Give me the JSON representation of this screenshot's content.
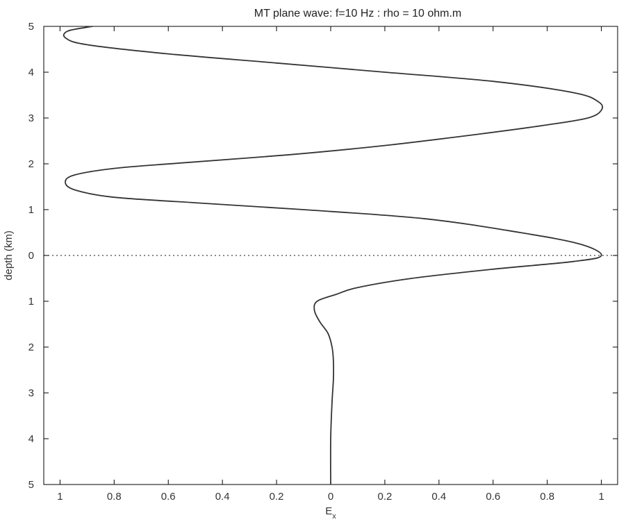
{
  "chart_data": {
    "type": "line",
    "title": "MT plane wave: f=10 Hz : rho = 10 ohm.m",
    "xlabel": "E",
    "xlabel_subscript": "x",
    "ylabel": "depth (km)",
    "xlim": [
      -1.06,
      1.06
    ],
    "ylim": [
      -5,
      5
    ],
    "x_ticks": [
      -1,
      -0.8,
      -0.6,
      -0.4,
      -0.2,
      0,
      0.2,
      0.4,
      0.6,
      0.8,
      1
    ],
    "x_tick_labels": [
      "1",
      "0.8",
      "0.6",
      "0.4",
      "0.2",
      "0",
      "0.2",
      "0.4",
      "0.6",
      "0.8",
      "1"
    ],
    "y_ticks": [
      5,
      4,
      3,
      2,
      1,
      0,
      -1,
      -2,
      -3,
      -4,
      -5
    ],
    "y_tick_labels": [
      "5",
      "4",
      "3",
      "2",
      "1",
      "0",
      "1",
      "2",
      "3",
      "4",
      "5"
    ],
    "reference_line": {
      "y": 0,
      "style": "dotted"
    },
    "series": [
      {
        "x": [
          -0.88,
          -0.97,
          -0.98,
          -0.9,
          -0.6,
          -0.2,
          0.2,
          0.6,
          0.9,
          0.99,
          1.0,
          0.95,
          0.8,
          0.55,
          0.2,
          -0.15,
          -0.55,
          -0.8,
          -0.95,
          -0.98,
          -0.94,
          -0.8,
          -0.5,
          -0.1,
          0.35,
          0.7,
          0.92,
          1.0,
          0.9,
          0.6,
          0.3,
          0.1,
          0.02,
          -0.05,
          -0.06,
          -0.04,
          -0.01,
          0.005,
          0.01,
          0.01,
          0.005,
          0.0,
          0.0
        ],
        "y": [
          5,
          4.9,
          4.75,
          4.6,
          4.4,
          4.2,
          4.0,
          3.8,
          3.55,
          3.35,
          3.17,
          3.0,
          2.85,
          2.65,
          2.4,
          2.2,
          2.02,
          1.9,
          1.75,
          1.58,
          1.42,
          1.27,
          1.15,
          1.0,
          0.8,
          0.5,
          0.25,
          0.0,
          -0.13,
          -0.3,
          -0.5,
          -0.7,
          -0.85,
          -1.0,
          -1.2,
          -1.45,
          -1.7,
          -2.0,
          -2.3,
          -2.7,
          -3.2,
          -4.0,
          -5.0
        ]
      }
    ]
  }
}
